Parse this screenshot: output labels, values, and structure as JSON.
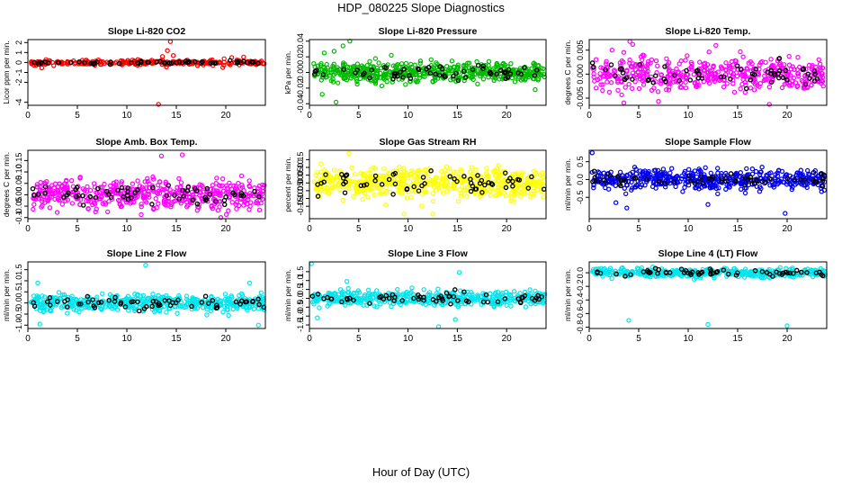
{
  "figure": {
    "title": "HDP_080225  Slope Diagnostics",
    "xlabel": "Hour of Day (UTC)"
  },
  "chart_data": [
    {
      "type": "scatter",
      "title": "Slope Li-820 CO2",
      "ylabel": "Licor ppm per min.",
      "xlim": [
        0,
        24
      ],
      "ylim": [
        -4.3,
        2.3
      ],
      "xticks": [
        0,
        5,
        10,
        15,
        20
      ],
      "yticks": [
        -4,
        -2,
        -1,
        0,
        1,
        2
      ],
      "ytick_labels": [
        "-4",
        "-2",
        "-1",
        "0",
        "1",
        "2"
      ],
      "color": "#ff0000",
      "typical_spread": 0.18,
      "series_count": 280,
      "outliers": [
        [
          1.4,
          -0.55
        ],
        [
          13.2,
          -4.2
        ],
        [
          14.4,
          2.1
        ],
        [
          14.1,
          1.2
        ],
        [
          14.7,
          0.7
        ],
        [
          13.6,
          0.6
        ],
        [
          21.8,
          0.55
        ],
        [
          20.6,
          0.5
        ],
        [
          19.7,
          -0.5
        ],
        [
          14.0,
          -0.45
        ]
      ]
    },
    {
      "type": "scatter",
      "title": "Slope Li-820 Pressure",
      "ylabel": "kPa per min.",
      "xlim": [
        0,
        24
      ],
      "ylim": [
        -0.042,
        0.042
      ],
      "xticks": [
        0,
        5,
        10,
        15,
        20
      ],
      "yticks": [
        -0.04,
        -0.02,
        0.0,
        0.02,
        0.04
      ],
      "ytick_labels": [
        "-0.04",
        "-0.02",
        "0.00",
        "0.02",
        "0.04"
      ],
      "color": "#00bb00",
      "typical_spread": 0.009,
      "series_count": 520,
      "outliers": [
        [
          4.1,
          0.04
        ],
        [
          3.4,
          0.034
        ],
        [
          2.5,
          0.027
        ],
        [
          1.5,
          0.025
        ],
        [
          2.7,
          -0.038
        ],
        [
          1.3,
          -0.028
        ],
        [
          22.9,
          -0.022
        ],
        [
          8.3,
          0.022
        ]
      ]
    },
    {
      "type": "scatter",
      "title": "Slope Li-820 Temp.",
      "ylabel": "degrees C per min.",
      "xlim": [
        0,
        24
      ],
      "ylim": [
        -0.0065,
        0.0072
      ],
      "xticks": [
        0,
        5,
        10,
        15,
        20
      ],
      "yticks": [
        -0.005,
        0.0,
        0.005
      ],
      "ytick_labels": [
        "-0.005",
        "0.000",
        "0.005"
      ],
      "color": "#ff00ff",
      "typical_spread": 0.0024,
      "series_count": 440,
      "outliers": [
        [
          4.1,
          0.0068
        ],
        [
          4.4,
          0.0062
        ],
        [
          12.8,
          0.006
        ],
        [
          3.5,
          -0.006
        ],
        [
          18.2,
          -0.0063
        ],
        [
          7.0,
          -0.0057
        ],
        [
          2.3,
          0.005
        ]
      ]
    },
    {
      "type": "scatter",
      "title": "Slope Amb. Box Temp.",
      "ylabel": "degrees C per min.",
      "xlim": [
        0,
        24
      ],
      "ylim": [
        -0.105,
        0.195
      ],
      "xticks": [
        0,
        5,
        10,
        15,
        20
      ],
      "yticks": [
        -0.1,
        -0.05,
        0.0,
        0.05,
        0.1,
        0.15
      ],
      "ytick_labels": [
        "-0.1",
        "-0.05",
        "0.00",
        "0.05",
        "0.10",
        "0.15"
      ],
      "color": "#ff00ff",
      "typical_spread": 0.045,
      "series_count": 480,
      "outliers": [
        [
          19.5,
          -0.1
        ],
        [
          15.6,
          0.175
        ],
        [
          13.5,
          0.17
        ]
      ]
    },
    {
      "type": "scatter",
      "title": "Slope Gas Stream RH",
      "ylabel": "percent per min.",
      "xlim": [
        0,
        24
      ],
      "ylim": [
        -0.23,
        0.21
      ],
      "xticks": [
        0,
        5,
        10,
        15,
        20
      ],
      "yticks": [
        -0.15,
        -0.1,
        -0.05,
        0.0,
        0.05,
        0.1,
        0.15
      ],
      "ytick_labels": [
        "-0.15",
        "-0.10",
        "-0.05",
        "0.00",
        "0.05",
        "0.10",
        "0.15"
      ],
      "color": "#ffff00",
      "typical_spread": 0.07,
      "series_count": 520,
      "outliers": [
        [
          9.6,
          -0.2
        ],
        [
          4.0,
          0.19
        ],
        [
          12.5,
          -0.2
        ]
      ]
    },
    {
      "type": "scatter",
      "title": "Slope Sample Flow",
      "ylabel": "ml/min per min.",
      "xlim": [
        0,
        24
      ],
      "ylim": [
        -1.1,
        0.82
      ],
      "xticks": [
        0,
        5,
        10,
        15,
        20
      ],
      "yticks": [
        -0.5,
        0.0,
        0.5
      ],
      "ytick_labels": [
        "-0.5",
        "0.0",
        "0.5"
      ],
      "color": "#0000ee",
      "typical_spread": 0.2,
      "series_count": 480,
      "outliers": [
        [
          19.8,
          -0.95
        ],
        [
          0.3,
          0.75
        ],
        [
          3.8,
          -0.8
        ],
        [
          2.7,
          -0.65
        ],
        [
          12.0,
          -0.7
        ]
      ]
    },
    {
      "type": "scatter",
      "title": "Slope Line 2 Flow",
      "ylabel": "ml/min per min.",
      "xlim": [
        0,
        24
      ],
      "ylim": [
        -1.15,
        1.85
      ],
      "xticks": [
        0,
        5,
        10,
        15,
        20
      ],
      "yticks": [
        -1.0,
        -0.5,
        0.0,
        0.5,
        1.0,
        1.5
      ],
      "ytick_labels": [
        "-1.0",
        "-0.5",
        "0.0",
        "0.5",
        "1.0",
        "1.5"
      ],
      "color": "#00e5ee",
      "typical_spread": 0.28,
      "series_count": 460,
      "outliers": [
        [
          11.9,
          1.7
        ],
        [
          1.2,
          -0.95
        ],
        [
          22.4,
          0.9
        ],
        [
          1.0,
          0.9
        ],
        [
          23.3,
          -1.0
        ]
      ]
    },
    {
      "type": "scatter",
      "title": "Slope Line 3 Flow",
      "ylabel": "ml/min per min.",
      "xlim": [
        0,
        24
      ],
      "ylim": [
        -1.7,
        2.05
      ],
      "xticks": [
        0,
        5,
        10,
        15,
        20
      ],
      "yticks": [
        -1.5,
        -1.0,
        -0.5,
        0.0,
        0.5,
        1.0,
        1.5
      ],
      "ytick_labels": [
        "-1.5",
        "-1.0",
        "-0.5",
        "0.0",
        "0.5",
        "1.0",
        "1.5"
      ],
      "color": "#00e5ee",
      "typical_spread": 0.3,
      "series_count": 460,
      "outliers": [
        [
          0.2,
          1.95
        ],
        [
          15.2,
          1.45
        ],
        [
          13.1,
          -1.6
        ],
        [
          14.8,
          -1.2
        ],
        [
          0.8,
          -1.1
        ],
        [
          3.8,
          0.95
        ]
      ]
    },
    {
      "type": "scatter",
      "title": "Slope Line 4 (LT) Flow",
      "ylabel": "ml/min per min.",
      "xlim": [
        0,
        24
      ],
      "ylim": [
        -0.82,
        0.16
      ],
      "xticks": [
        0,
        5,
        10,
        15,
        20
      ],
      "yticks": [
        -0.8,
        -0.6,
        -0.4,
        -0.2,
        0.0
      ],
      "ytick_labels": [
        "-0.8",
        "-0.6",
        "-0.4",
        "-0.2",
        "0.0"
      ],
      "color": "#00e5ee",
      "typical_spread": 0.045,
      "series_count": 420,
      "outliers": [
        [
          4.0,
          -0.7
        ],
        [
          12.0,
          -0.76
        ],
        [
          20.0,
          -0.78
        ]
      ]
    }
  ]
}
